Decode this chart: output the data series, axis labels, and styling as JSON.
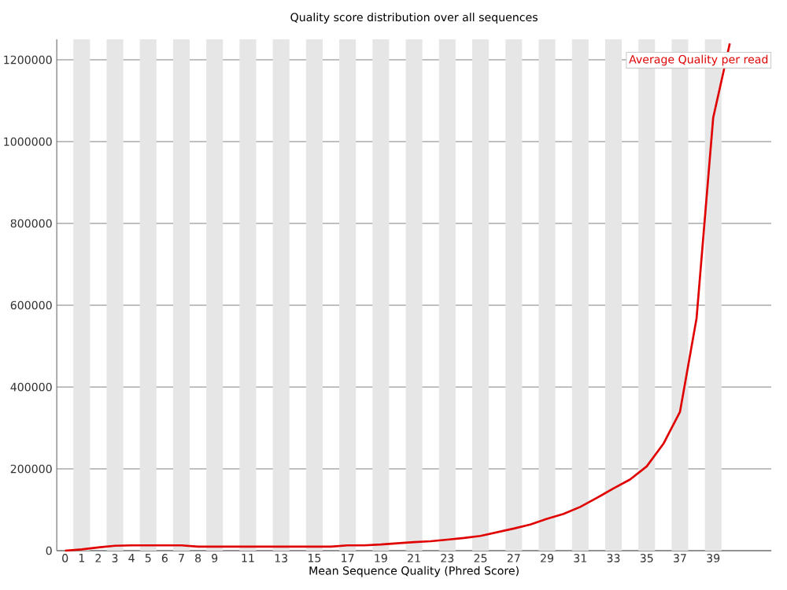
{
  "chart_data": {
    "type": "line",
    "title": "Quality score distribution over all sequences",
    "xlabel": "Mean Sequence Quality (Phred Score)",
    "x": [
      0,
      1,
      2,
      3,
      4,
      5,
      6,
      7,
      8,
      9,
      10,
      11,
      12,
      13,
      14,
      15,
      16,
      17,
      18,
      19,
      20,
      21,
      22,
      23,
      24,
      25,
      26,
      27,
      28,
      29,
      30,
      31,
      32,
      33,
      34,
      35,
      36,
      37,
      38,
      39,
      40
    ],
    "series": [
      {
        "name": "Average Quality per read",
        "color": "#e00000",
        "values": [
          0,
          3000,
          8000,
          12000,
          13000,
          13000,
          13000,
          13000,
          10000,
          10000,
          10000,
          10000,
          10000,
          10000,
          10000,
          10000,
          10000,
          13000,
          13000,
          15000,
          18000,
          21000,
          23000,
          27000,
          31000,
          36000,
          45000,
          54000,
          64000,
          78000,
          90000,
          107000,
          129000,
          152000,
          174000,
          206000,
          261000,
          339000,
          568000,
          1058000,
          1240000
        ]
      }
    ],
    "xlim": [
      -0.5,
      42.5
    ],
    "ylim": [
      0,
      1250000
    ],
    "xticks": [
      0,
      1,
      2,
      3,
      4,
      5,
      6,
      7,
      8,
      9,
      11,
      13,
      15,
      17,
      19,
      21,
      23,
      25,
      27,
      29,
      31,
      33,
      35,
      37,
      39
    ],
    "yticks": [
      0,
      200000,
      400000,
      600000,
      800000,
      1000000,
      1200000
    ],
    "grid": "y",
    "legend": "top right",
    "marker": "none",
    "line_style": "solid",
    "bands": [
      {
        "axis": "x",
        "from": 0.5,
        "to": 1.5,
        "color": "#e6e6e6"
      },
      {
        "axis": "x",
        "from": 2.5,
        "to": 3.5,
        "color": "#e6e6e6"
      },
      {
        "axis": "x",
        "from": 4.5,
        "to": 5.5,
        "color": "#e6e6e6"
      },
      {
        "axis": "x",
        "from": 6.5,
        "to": 7.5,
        "color": "#e6e6e6"
      },
      {
        "axis": "x",
        "from": 8.5,
        "to": 9.5,
        "color": "#e6e6e6"
      },
      {
        "axis": "x",
        "from": 10.5,
        "to": 11.5,
        "color": "#e6e6e6"
      },
      {
        "axis": "x",
        "from": 12.5,
        "to": 13.5,
        "color": "#e6e6e6"
      },
      {
        "axis": "x",
        "from": 14.5,
        "to": 15.5,
        "color": "#e6e6e6"
      },
      {
        "axis": "x",
        "from": 16.5,
        "to": 17.5,
        "color": "#e6e6e6"
      },
      {
        "axis": "x",
        "from": 18.5,
        "to": 19.5,
        "color": "#e6e6e6"
      },
      {
        "axis": "x",
        "from": 20.5,
        "to": 21.5,
        "color": "#e6e6e6"
      },
      {
        "axis": "x",
        "from": 22.5,
        "to": 23.5,
        "color": "#e6e6e6"
      },
      {
        "axis": "x",
        "from": 24.5,
        "to": 25.5,
        "color": "#e6e6e6"
      },
      {
        "axis": "x",
        "from": 26.5,
        "to": 27.5,
        "color": "#e6e6e6"
      },
      {
        "axis": "x",
        "from": 28.5,
        "to": 29.5,
        "color": "#e6e6e6"
      },
      {
        "axis": "x",
        "from": 30.5,
        "to": 31.5,
        "color": "#e6e6e6"
      },
      {
        "axis": "x",
        "from": 32.5,
        "to": 33.5,
        "color": "#e6e6e6"
      },
      {
        "axis": "x",
        "from": 34.5,
        "to": 35.5,
        "color": "#e6e6e6"
      },
      {
        "axis": "x",
        "from": 36.5,
        "to": 37.5,
        "color": "#e6e6e6"
      },
      {
        "axis": "x",
        "from": 38.5,
        "to": 39.5,
        "color": "#e6e6e6"
      }
    ]
  }
}
